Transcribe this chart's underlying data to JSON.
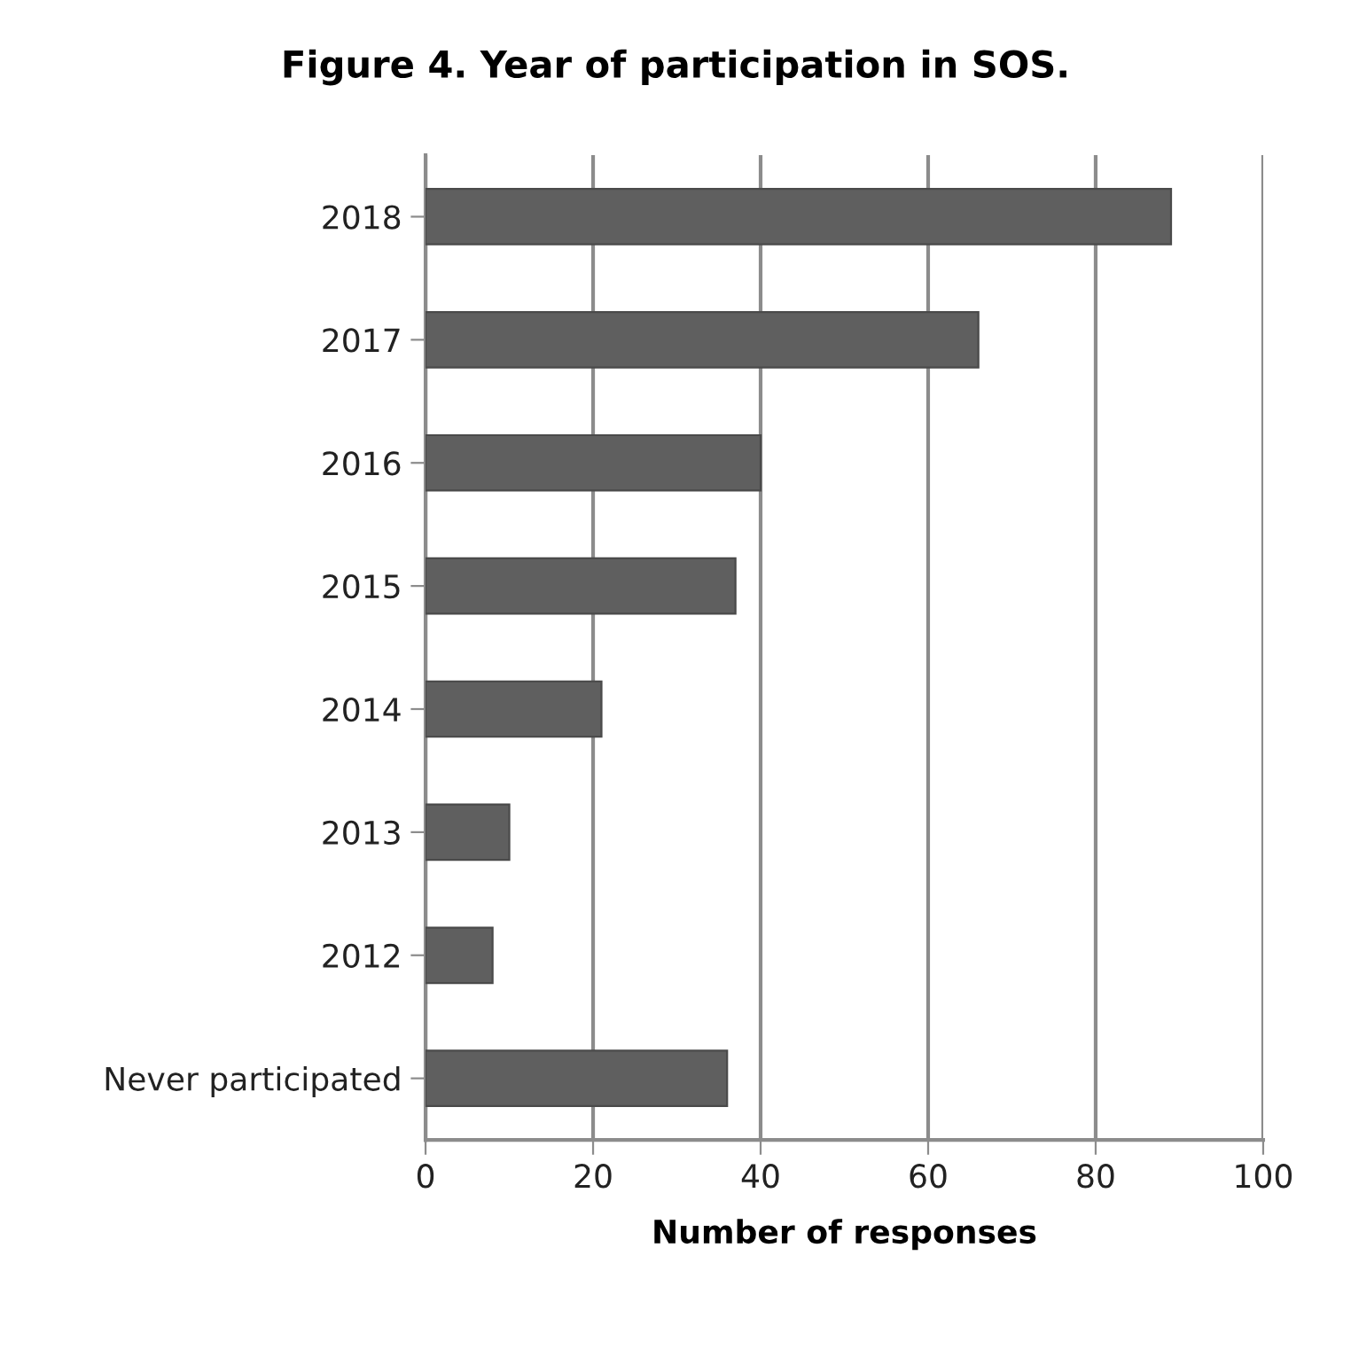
{
  "chart_data": {
    "type": "bar",
    "orientation": "horizontal",
    "title": "Figure 4. Year of participation in SOS.",
    "xlabel": "Number of responses",
    "categories": [
      "2018",
      "2017",
      "2016",
      "2015",
      "2014",
      "2013",
      "2012",
      "Never participated"
    ],
    "values": [
      89,
      66,
      40,
      37,
      21,
      10,
      8,
      36
    ],
    "color": "#5f5f5f",
    "xlim": [
      0,
      100
    ],
    "xticks": [
      0,
      20,
      40,
      60,
      80,
      100
    ],
    "grid": "x"
  }
}
